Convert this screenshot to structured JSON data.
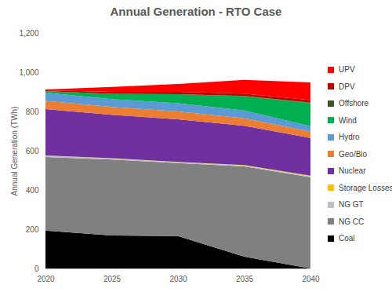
{
  "chart_data": {
    "type": "area",
    "stacked": true,
    "title": "Annual Generation - RTO Case",
    "y_label": "Annual Generation (TWh)",
    "x": [
      2020,
      2025,
      2030,
      2035,
      2040
    ],
    "xlim": [
      2020,
      2040
    ],
    "xticks": [
      2020,
      2025,
      2030,
      2035,
      2040
    ],
    "ylim": [
      0,
      1200
    ],
    "yticks": [
      0,
      200,
      400,
      600,
      800,
      {
        "value": 1000,
        "label": "1,000"
      },
      {
        "value": 1200,
        "label": "1,200"
      }
    ],
    "grid": false,
    "legend": "right",
    "series": [
      {
        "name": "Coal",
        "color": "#000000",
        "values": [
          193,
          168,
          165,
          60,
          0
        ]
      },
      {
        "name": "NG CC",
        "color": "#808080",
        "values": [
          375,
          387,
          372,
          460,
          465
        ]
      },
      {
        "name": "NG GT",
        "color": "#bfbfbf",
        "values": [
          8,
          6,
          5,
          5,
          5
        ]
      },
      {
        "name": "Storage Losses",
        "color": "#ffc000",
        "values": [
          0,
          1,
          1,
          2,
          3
        ]
      },
      {
        "name": "Nuclear",
        "color": "#7030a0",
        "values": [
          236,
          221,
          217,
          200,
          192
        ]
      },
      {
        "name": "Geo/Bio",
        "color": "#ed7d31",
        "values": [
          42,
          40,
          40,
          38,
          32
        ]
      },
      {
        "name": "Hydro",
        "color": "#5b9bd5",
        "values": [
          42,
          40,
          42,
          40,
          28
        ]
      },
      {
        "name": "Wind",
        "color": "#00b050",
        "values": [
          8,
          27,
          46,
          73,
          118
        ]
      },
      {
        "name": "Offshore",
        "color": "#375623",
        "values": [
          0,
          0,
          0,
          1,
          2
        ]
      },
      {
        "name": "DPV",
        "color": "#c00000",
        "values": [
          4,
          10,
          12,
          12,
          13
        ]
      },
      {
        "name": "UPV",
        "color": "#ff0000",
        "values": [
          4,
          25,
          40,
          70,
          90
        ]
      }
    ]
  }
}
